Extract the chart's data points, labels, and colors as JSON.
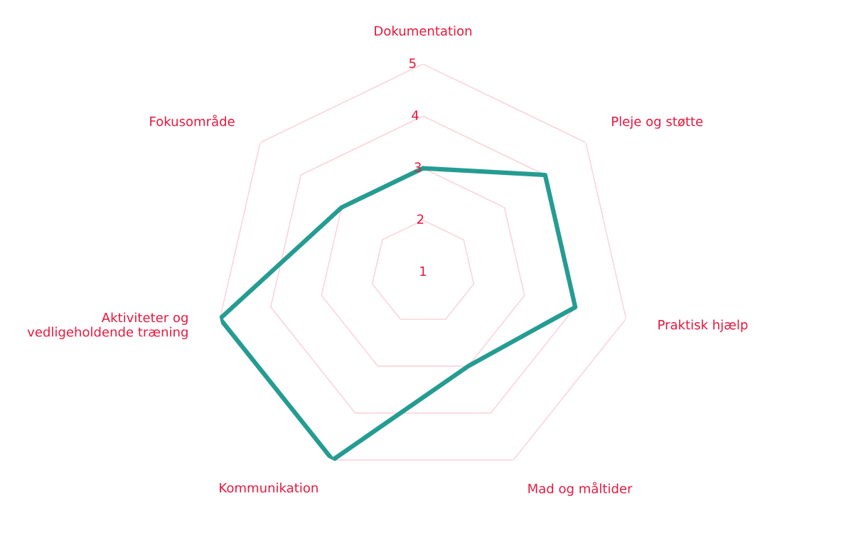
{
  "chart_data": {
    "type": "radar",
    "categories": [
      "Dokumentation",
      "Pleje og støtte",
      "Praktisk hjælp",
      "Mad og måltider",
      "Kommunikation",
      "Aktiviteter og\nvedligeholdende træning",
      "Fokusområde"
    ],
    "series": [
      {
        "color": "#259c92",
        "values": [
          3,
          4,
          4,
          3,
          5,
          5,
          3
        ]
      }
    ],
    "ylim": [
      1,
      5
    ],
    "yticks": [
      1,
      2,
      3,
      4,
      5
    ],
    "grid": true
  }
}
